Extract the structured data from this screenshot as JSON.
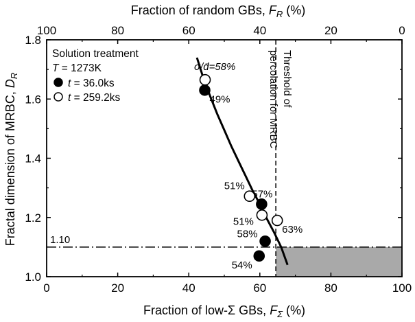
{
  "chart_data": {
    "type": "scatter",
    "xlabel": "Fraction of low-Σ GBs, ",
    "xlabel_symbol": "F",
    "xlabel_sub": "Σ",
    "xlabel_unit": " (%)",
    "x2label": "Fraction of random GBs, ",
    "x2label_symbol": "F",
    "x2label_sub": "R",
    "x2label_unit": " (%)",
    "ylabel": "Fractal dimension of MRBC, ",
    "ylabel_symbol": "D",
    "ylabel_sub": "R",
    "xlim": [
      0,
      100
    ],
    "x2lim": [
      100,
      0
    ],
    "ylim": [
      1.0,
      1.8
    ],
    "xticks": [
      "0",
      "20",
      "40",
      "60",
      "80",
      "100"
    ],
    "x2ticks": [
      "100",
      "80",
      "60",
      "40",
      "20",
      "0"
    ],
    "yticks": [
      "1.0",
      "1.2",
      "1.4",
      "1.6",
      "1.8"
    ],
    "legend": {
      "title": "Solution treatment",
      "temp_symbol": "T",
      "temp_value": " = 1273K",
      "entries": [
        {
          "symbol": "t",
          "value": " = 36.0ks",
          "marker": "filled"
        },
        {
          "symbol": "t",
          "value": " = 259.2ks",
          "marker": "open"
        }
      ]
    },
    "series": [
      {
        "name": "t = 36.0ks",
        "marker": "filled",
        "points": [
          {
            "x": 44.5,
            "y": 1.63,
            "label": "49%"
          },
          {
            "x": 60.5,
            "y": 1.245,
            "label": "57%"
          },
          {
            "x": 61.5,
            "y": 1.12,
            "label": "58%"
          },
          {
            "x": 59.8,
            "y": 1.07,
            "label": "54%"
          }
        ]
      },
      {
        "name": "t = 259.2ks",
        "marker": "open",
        "points": [
          {
            "x": 44.6,
            "y": 1.665,
            "label": "58%"
          },
          {
            "x": 57.1,
            "y": 1.272,
            "label": "51%"
          },
          {
            "x": 60.6,
            "y": 1.208,
            "label": "51%"
          },
          {
            "x": 64.9,
            "y": 1.19,
            "label": "63%"
          }
        ]
      }
    ],
    "first_label_prefix": "σ/d̄=",
    "fit_curve": [
      [
        42.3,
        1.74
      ],
      [
        44,
        1.675
      ],
      [
        46,
        1.61
      ],
      [
        48,
        1.55
      ],
      [
        50,
        1.495
      ],
      [
        52,
        1.44
      ],
      [
        54,
        1.39
      ],
      [
        56,
        1.34
      ],
      [
        58,
        1.29
      ],
      [
        60,
        1.245
      ],
      [
        62,
        1.195
      ],
      [
        64,
        1.15
      ],
      [
        66,
        1.1
      ],
      [
        67.8,
        1.04
      ]
    ],
    "threshold": {
      "x": 64.5,
      "label_line1": "Threshold of",
      "label_line2": "percolation for MRBC"
    },
    "hline": {
      "y": 1.1,
      "label": "1.10"
    },
    "shaded_region": {
      "x_from": 64.5,
      "x_to": 100,
      "y_from": 1.0,
      "y_to": 1.1,
      "color": "#a9a9a9"
    }
  }
}
